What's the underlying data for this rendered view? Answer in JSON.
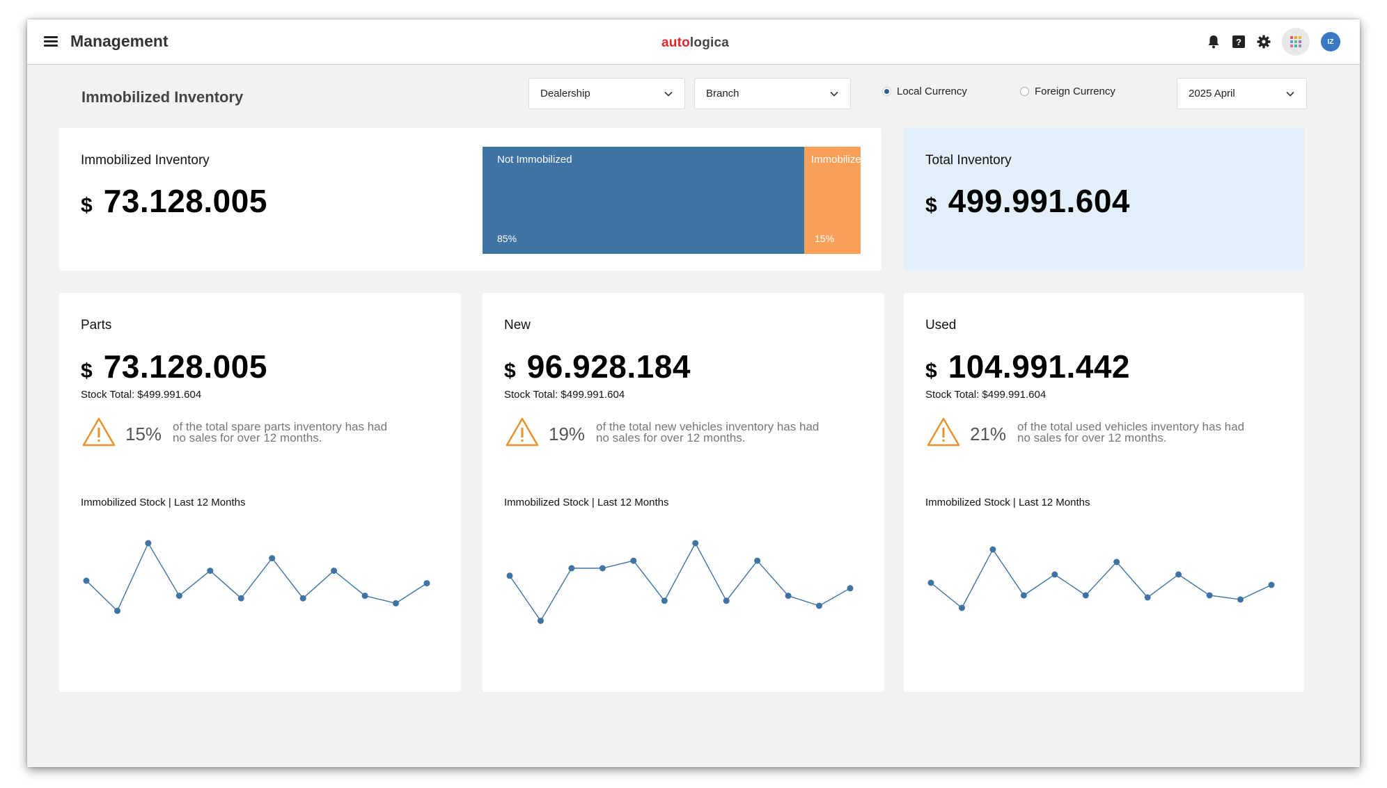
{
  "header": {
    "title": "Management",
    "logo_part1": "auto",
    "logo_part2": "logica",
    "avatar_initials": "IZ"
  },
  "filters": {
    "page_title": "Immobilized Inventory",
    "dealership": "Dealership",
    "branch": "Branch",
    "currency_local": "Local Currency",
    "currency_foreign": "Foreign Currency",
    "selected_currency": "Local Currency",
    "period": "2025 April"
  },
  "summary": {
    "immobilized_label": "Immobilized Inventory",
    "immobilized_currency": "$",
    "immobilized_value": "73.128.005",
    "total_label": "Total Inventory",
    "total_currency": "$",
    "total_value": "499.991.604"
  },
  "split_bar": {
    "not_immobilized_label": "Not Immobilized",
    "not_immobilized_pct": "85%",
    "not_immobilized_fraction": 0.85,
    "immobilized_label": "Immobilized",
    "immobilized_pct": "15%",
    "immobilized_fraction": 0.15
  },
  "colors": {
    "not_immobilized": "#3e73a3",
    "immobilized": "#f8a05a",
    "total_card_bg": "#e2eff9",
    "line": "#3e73a3",
    "warning": "#e8912e"
  },
  "categories": [
    {
      "label": "Parts",
      "currency": "$",
      "value": "73.128.005",
      "stock_total": "Stock Total: $499.991.604",
      "pct": "15%",
      "warning_text": "of the total spare parts inventory has had no sales for over 12 months.",
      "chart_title": "Immobilized Stock | Last 12 Months"
    },
    {
      "label": "New",
      "currency": "$",
      "value": "96.928.184",
      "stock_total": "Stock Total: $499.991.604",
      "pct": "19%",
      "warning_text": "of the total new vehicles inventory has had no sales for over 12 months.",
      "chart_title": "Immobilized Stock | Last 12 Months"
    },
    {
      "label": "Used",
      "currency": "$",
      "value": "104.991.442",
      "stock_total": "Stock Total: $499.991.604",
      "pct": "21%",
      "warning_text": "of the total used vehicles inventory has had no sales for over 12 months.",
      "chart_title": "Immobilized Stock | Last 12 Months"
    }
  ],
  "chart_data": [
    {
      "type": "line",
      "x": [
        1,
        2,
        3,
        4,
        5,
        6,
        7,
        8,
        9,
        10,
        11,
        12
      ],
      "values": [
        50,
        38,
        65,
        44,
        54,
        43,
        59,
        43,
        54,
        44,
        41,
        49
      ],
      "ylim": [
        20,
        70
      ],
      "grid": false
    },
    {
      "type": "line",
      "x": [
        1,
        2,
        3,
        4,
        5,
        6,
        7,
        8,
        9,
        10,
        11,
        12
      ],
      "values": [
        52,
        34,
        55,
        55,
        58,
        42,
        65,
        42,
        58,
        44,
        40,
        47
      ],
      "ylim": [
        20,
        70
      ],
      "grid": false
    },
    {
      "type": "line",
      "x": [
        1,
        2,
        3,
        4,
        5,
        6,
        7,
        8,
        9,
        10,
        11,
        12
      ],
      "values": [
        55,
        43,
        71,
        49,
        59,
        49,
        65,
        48,
        59,
        49,
        47,
        54
      ],
      "ylim": [
        20,
        80
      ],
      "grid": false
    }
  ]
}
